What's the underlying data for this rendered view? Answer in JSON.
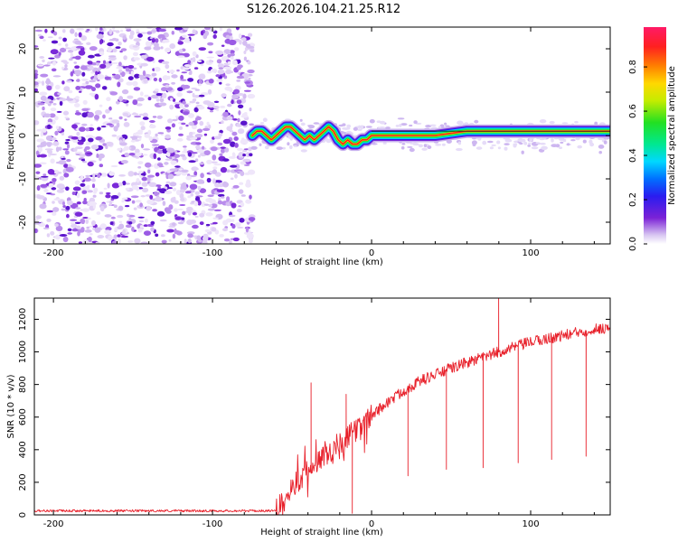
{
  "figure_title": "S126.2026.104.21.25.R12",
  "chart_data": [
    {
      "type": "heatmap",
      "panel": "top",
      "xlabel": "Height of straight line (km)",
      "ylabel": "Frequency (Hz)",
      "xlim": [
        -212,
        150
      ],
      "ylim": [
        -25,
        25
      ],
      "xticks": [
        -200,
        -100,
        0,
        100
      ],
      "yticks": [
        -20,
        -10,
        0,
        10,
        20
      ],
      "noise_region_x": [
        -212,
        -75
      ],
      "signal_region_x": [
        -75,
        150
      ],
      "ridge": {
        "x": [
          -75,
          -72,
          -69,
          -66,
          -63,
          -60,
          -57,
          -54,
          -51,
          -48,
          -45,
          -42,
          -39,
          -36,
          -33,
          -30,
          -27,
          -24,
          -21,
          -18,
          -15,
          -12,
          -9,
          -6,
          -3,
          0,
          20,
          40,
          60,
          80,
          100,
          120,
          150
        ],
        "y": [
          0,
          1,
          1,
          0,
          -1,
          0,
          1,
          2,
          2,
          1,
          0,
          -1,
          0,
          -1,
          0,
          1,
          2,
          1,
          -1,
          -2,
          -1,
          -2,
          -2,
          -1,
          -1,
          0,
          0,
          0,
          1,
          1,
          1,
          1,
          1
        ]
      },
      "colorbar": {
        "label": "Normalized spectral amplitude",
        "ticks": [
          0.0,
          0.2,
          0.4,
          0.6,
          0.8
        ],
        "range": [
          0,
          0.98
        ]
      }
    },
    {
      "type": "line",
      "panel": "bottom",
      "xlabel": "Height of straight line (km)",
      "ylabel": "SNR (10 * v/v)",
      "xlim": [
        -212,
        150
      ],
      "ylim": [
        0,
        1330
      ],
      "xticks": [
        -200,
        -100,
        0,
        100
      ],
      "yticks": [
        0,
        200,
        400,
        600,
        800,
        1000,
        1200
      ],
      "series": [
        {
          "name": "SNR",
          "color": "#e8202a",
          "baseline": {
            "x": [
              -212,
              -60,
              -55,
              -45,
              -35,
              -25,
              -15,
              -5,
              0,
              10,
              20,
              30,
              40,
              50,
              60,
              70,
              80,
              90,
              100,
              110,
              120,
              130,
              140,
              150
            ],
            "y": [
              25,
              25,
              120,
              220,
              320,
              400,
              480,
              560,
              610,
              690,
              760,
              820,
              860,
              900,
              935,
              965,
              1000,
              1030,
              1060,
              1080,
              1100,
              1120,
              1140,
              1150
            ]
          },
          "spikes_up": [
            {
              "x": -38,
              "y": 810
            },
            {
              "x": -16,
              "y": 740
            },
            {
              "x": 80,
              "y": 1330
            }
          ],
          "dips": [
            {
              "x": -12,
              "y": 10
            },
            {
              "x": 23,
              "y": 240
            },
            {
              "x": 47,
              "y": 280
            },
            {
              "x": 70,
              "y": 290
            },
            {
              "x": 92,
              "y": 320
            },
            {
              "x": 113,
              "y": 340
            },
            {
              "x": 135,
              "y": 360
            }
          ]
        }
      ]
    }
  ]
}
